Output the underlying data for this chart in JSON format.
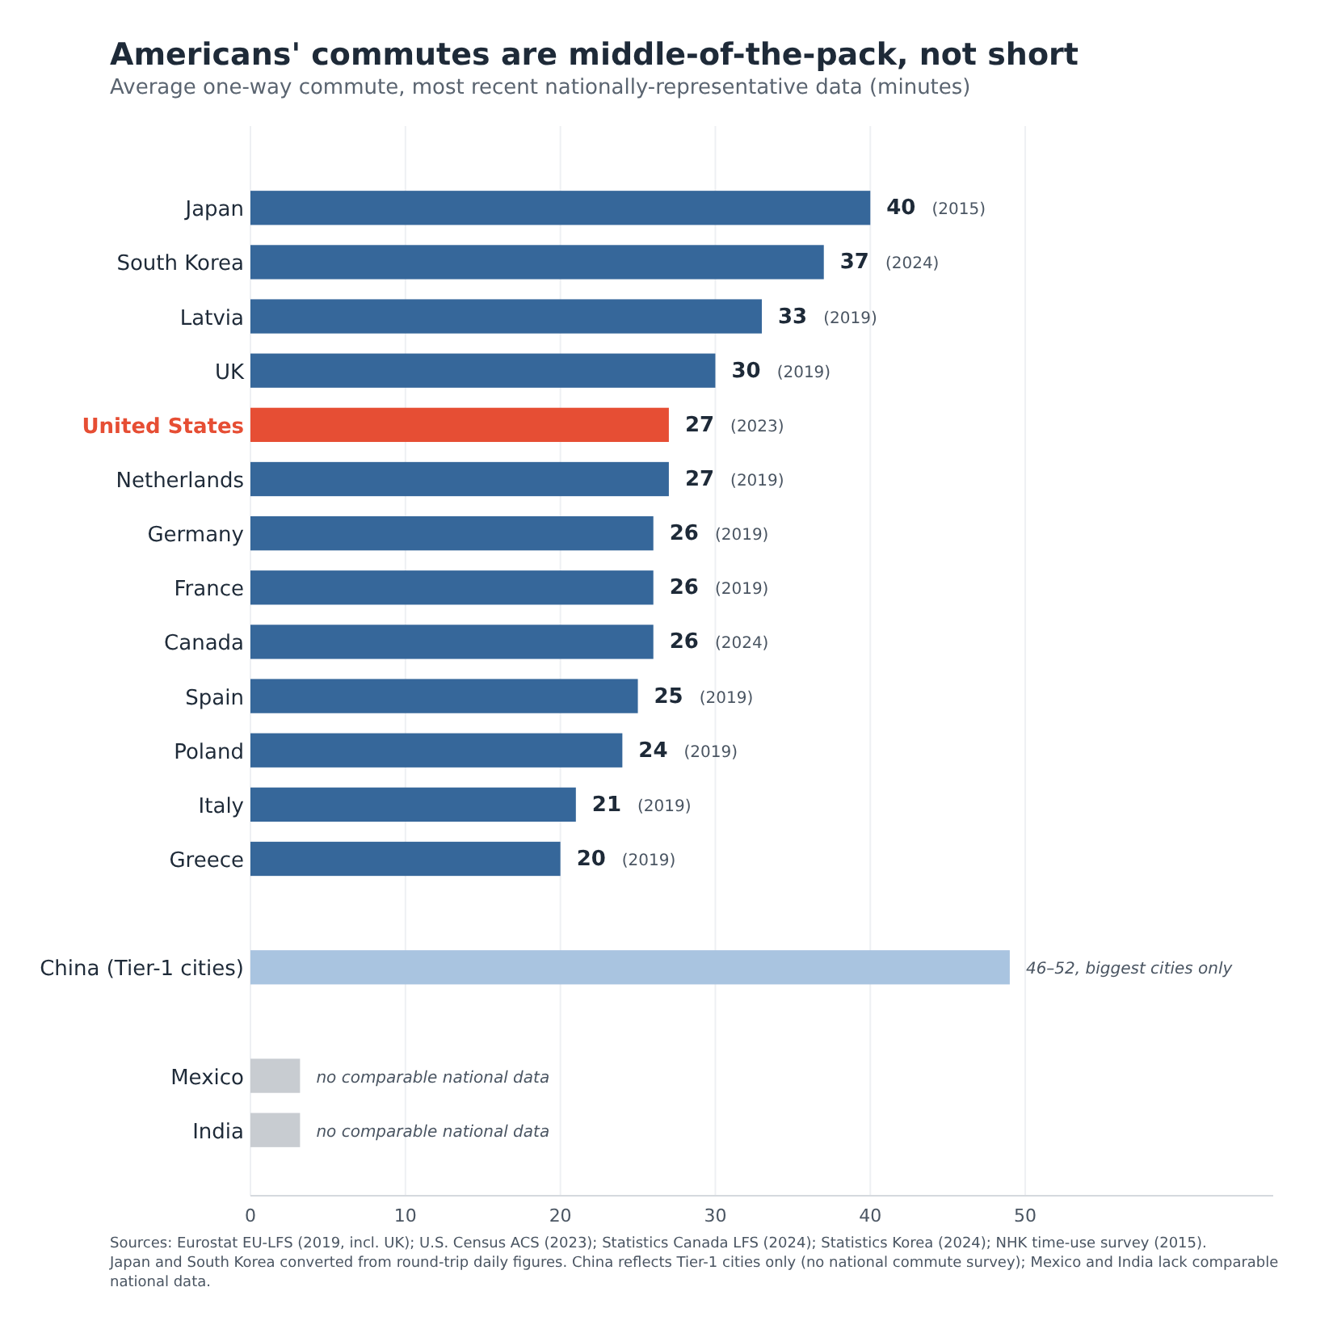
{
  "chart_data": {
    "type": "bar",
    "orientation": "horizontal",
    "title": "Americans' commutes are middle-of-the-pack, not short",
    "subtitle": "Average one-way commute, most recent nationally-representative data (minutes)",
    "categories": [
      "Japan",
      "South Korea",
      "Latvia",
      "UK",
      "United States",
      "Netherlands",
      "Germany",
      "France",
      "Canada",
      "Spain",
      "Poland",
      "Italy",
      "Greece",
      null,
      "China (Tier-1 cities)",
      null,
      "Mexico",
      "India"
    ],
    "values": [
      40,
      37,
      33,
      30,
      27,
      27,
      26,
      26,
      26,
      25,
      24,
      21,
      20,
      null,
      49,
      null,
      3.2,
      3.2
    ],
    "colors": [
      "#36679a",
      "#36679a",
      "#36679a",
      "#36679a",
      "#e64e34",
      "#36679a",
      "#36679a",
      "#36679a",
      "#36679a",
      "#36679a",
      "#36679a",
      "#36679a",
      "#36679a",
      null,
      "#a9c4e0",
      null,
      "#c8ccd1",
      "#c8ccd1"
    ],
    "value_labels": [
      "40 (2015)",
      "37 (2024)",
      "33 (2019)",
      "30 (2019)",
      "27 (2023)",
      "27 (2019)",
      "26 (2019)",
      "26 (2019)",
      "26 (2024)",
      "25 (2019)",
      "24 (2019)",
      "21 (2019)",
      "20 (2019)",
      null,
      "46–52, biggest cities only",
      null,
      "no comparable national data",
      "no comparable national data"
    ],
    "xlim": [
      0,
      66
    ],
    "xticks": [
      0,
      10,
      20,
      30,
      40,
      50
    ],
    "grid": "x",
    "annotations": [
      "Sources: Eurostat EU-LFS (2019, incl. UK); U.S. Census ACS (2023); Statistics Canada LFS (2024); Statistics Korea (2024); NHK time-use survey (2015).",
      "Japan and South Korea converted from round-trip daily figures. China reflects Tier-1 cities only (no national commute survey); Mexico and India lack comparable national data."
    ]
  }
}
